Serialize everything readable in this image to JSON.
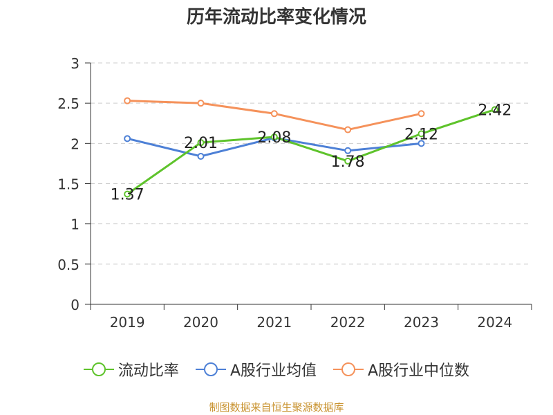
{
  "chart_data": {
    "type": "line",
    "title": "历年流动比率变化情况",
    "categories": [
      "2019",
      "2020",
      "2021",
      "2022",
      "2023",
      "2024"
    ],
    "ylim": [
      0,
      3
    ],
    "yticks": [
      "0",
      "0.5",
      "1",
      "1.5",
      "2",
      "2.5",
      "3"
    ],
    "grid": true,
    "legend_position": "bottom",
    "series": [
      {
        "name": "流动比率",
        "color": "#5ec32b",
        "values": [
          1.37,
          2.01,
          2.08,
          1.78,
          2.12,
          2.42
        ],
        "labels": [
          "1.37",
          "2.01",
          "2.08",
          "1.78",
          "2.12",
          "2.42"
        ]
      },
      {
        "name": "A股行业均值",
        "color": "#4d80d6",
        "values": [
          2.06,
          1.84,
          2.07,
          1.91,
          2.0,
          null
        ]
      },
      {
        "name": "A股行业中位数",
        "color": "#f5925b",
        "values": [
          2.53,
          2.5,
          2.37,
          2.17,
          2.37,
          null
        ]
      }
    ]
  },
  "footer": {
    "source": "制图数据来自恒生聚源数据库"
  }
}
